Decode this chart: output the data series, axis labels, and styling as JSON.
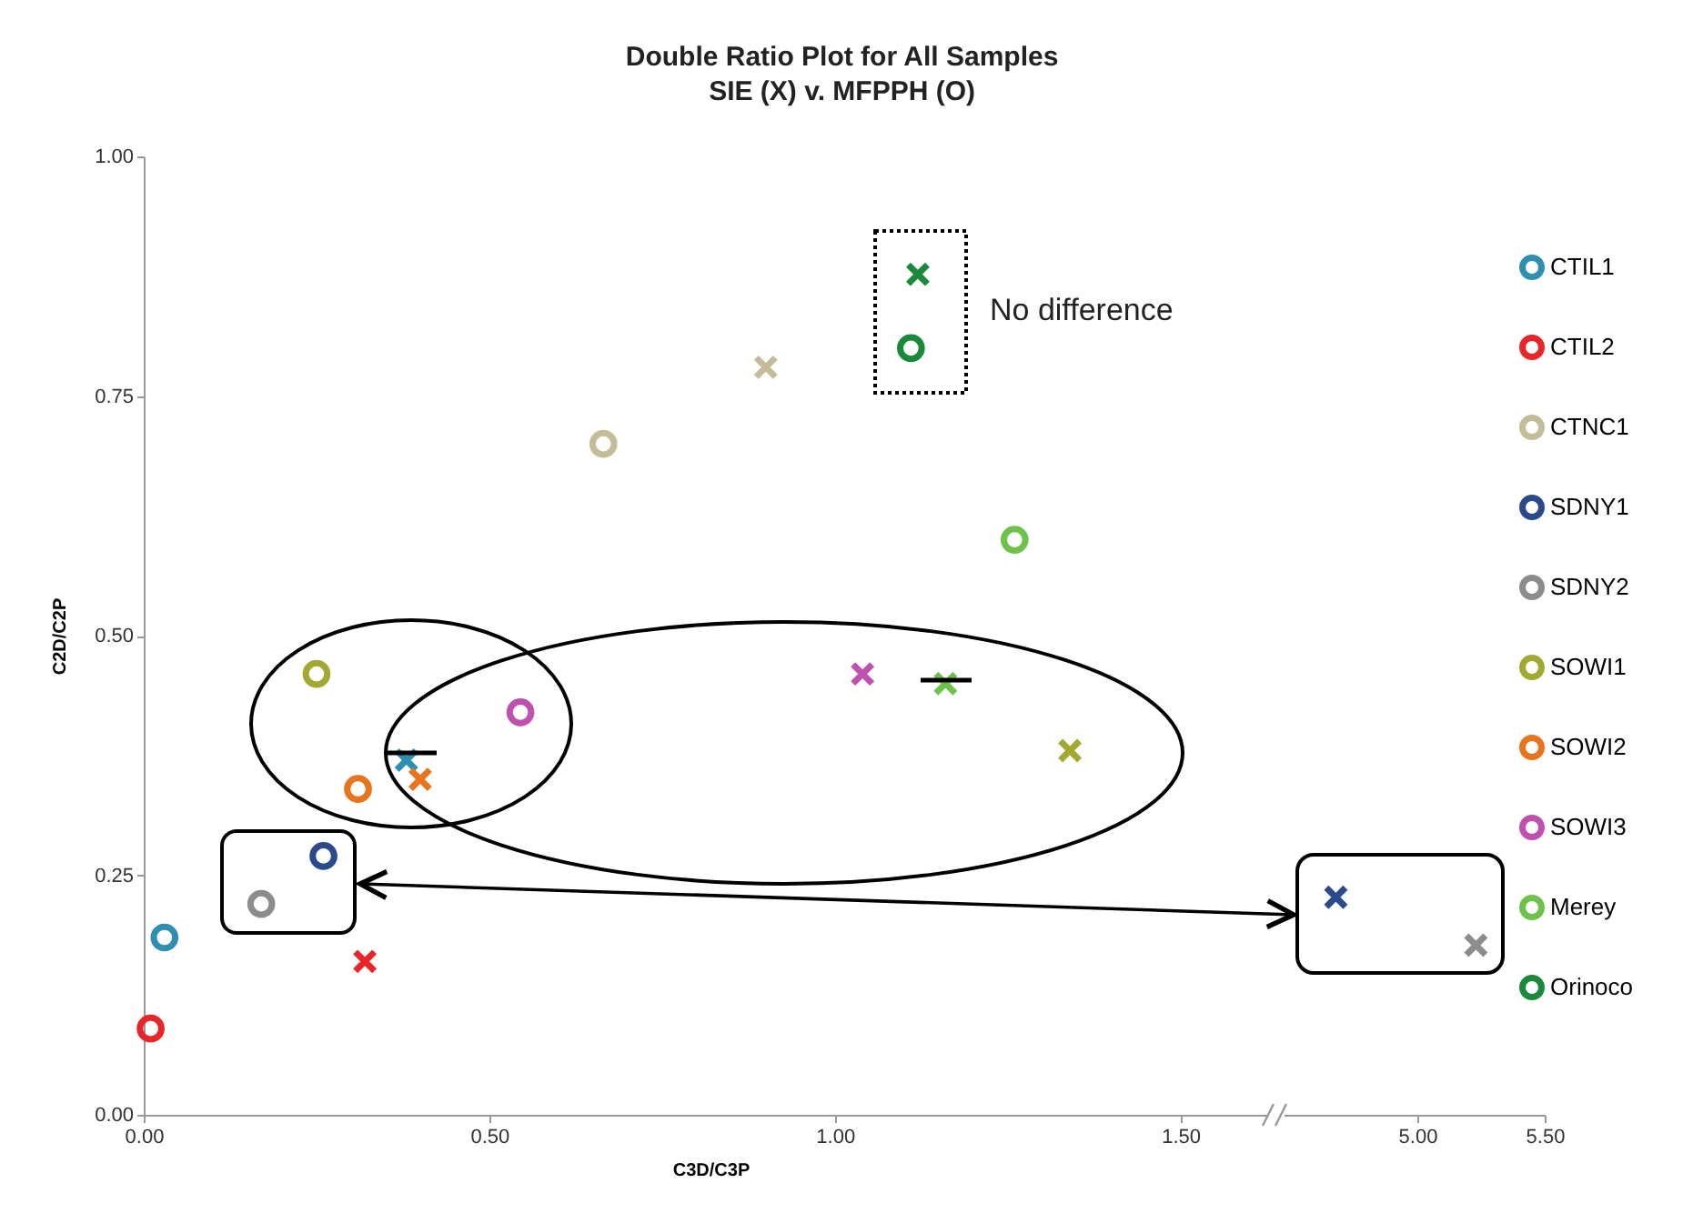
{
  "chart_data": [
    {
      "type": "scatter",
      "title": "Double Ratio Plot for All Samples",
      "subtitle": "SIE (X) v. MFPPH (O)",
      "xlabel": "C3D/C3P",
      "ylabel": "C2D/C2P",
      "xlim": [
        0,
        1.64
      ],
      "ylim": [
        0,
        1
      ],
      "xticks": [
        {
          "value": 0,
          "label": "0.00"
        },
        {
          "value": 0.5,
          "label": "0.50"
        },
        {
          "value": 1,
          "label": "1.00"
        },
        {
          "value": 1.5,
          "label": "1.50"
        }
      ],
      "yticks": [
        {
          "value": 0,
          "label": "0.00"
        },
        {
          "value": 0.25,
          "label": "0.25"
        },
        {
          "value": 0.5,
          "label": "0.50"
        },
        {
          "value": 0.75,
          "label": "0.75"
        },
        {
          "value": 1,
          "label": "1.00"
        }
      ],
      "legend": "right",
      "grid": false,
      "series": [
        {
          "name": "CTIL1",
          "color": "#2e8fb0",
          "marker": "circle",
          "x": [
            0.03
          ],
          "values": [
            0.185
          ]
        },
        {
          "name": "CTIL2",
          "color": "#e8262a",
          "marker": "circle",
          "x": [
            0.01
          ],
          "values": [
            0.09
          ]
        },
        {
          "name": "CTNC1",
          "color": "#c4bc98",
          "marker": "circle",
          "x": [
            0.665
          ],
          "values": [
            0.7
          ]
        },
        {
          "name": "SDNY1",
          "color": "#2a4a8c",
          "marker": "circle",
          "x": [
            0.26
          ],
          "values": [
            0.27
          ]
        },
        {
          "name": "SDNY2",
          "color": "#8c8c8c",
          "marker": "circle",
          "x": [
            0.17
          ],
          "values": [
            0.22
          ]
        },
        {
          "name": "SOWI1",
          "color": "#a3a830",
          "marker": "circle",
          "x": [
            0.25
          ],
          "values": [
            0.46
          ]
        },
        {
          "name": "SOWI2",
          "color": "#e8741e",
          "marker": "circle",
          "x": [
            0.31
          ],
          "values": [
            0.34
          ]
        },
        {
          "name": "SOWI3",
          "color": "#c050b0",
          "marker": "circle",
          "x": [
            0.545
          ],
          "values": [
            0.42
          ]
        },
        {
          "name": "Merey",
          "color": "#6cc24a",
          "marker": "circle",
          "x": [
            1.26
          ],
          "values": [
            0.6
          ]
        },
        {
          "name": "Orinoco",
          "color": "#1a8a3a",
          "marker": "circle",
          "x": [
            1.11
          ],
          "values": [
            0.8
          ]
        },
        {
          "color": "#2e8fb0",
          "marker": "cross",
          "x": [
            0.38
          ],
          "values": [
            0.37
          ]
        },
        {
          "color": "#e8262a",
          "marker": "cross",
          "x": [
            0.32
          ],
          "values": [
            0.16
          ]
        },
        {
          "color": "#c4bc98",
          "marker": "cross",
          "x": [
            0.9
          ],
          "values": [
            0.78
          ]
        },
        {
          "color": "#a3a830",
          "marker": "cross",
          "x": [
            1.34
          ],
          "values": [
            0.38
          ]
        },
        {
          "color": "#e8741e",
          "marker": "cross",
          "x": [
            0.4
          ],
          "values": [
            0.35
          ]
        },
        {
          "color": "#c050b0",
          "marker": "cross",
          "x": [
            1.04
          ],
          "values": [
            0.46
          ]
        },
        {
          "color": "#6cc24a",
          "marker": "cross",
          "x": [
            1.16
          ],
          "values": [
            0.45
          ]
        },
        {
          "color": "#1a8a3a",
          "marker": "cross",
          "x": [
            1.12
          ],
          "values": [
            0.877
          ]
        }
      ],
      "annotations": [
        "No difference"
      ]
    },
    {
      "type": "scatter",
      "xlim": [
        4.45,
        5.5
      ],
      "ylim": [
        0,
        1
      ],
      "tick_labels": "x",
      "xticks": [
        {
          "value": 5,
          "label": "5.00"
        },
        {
          "value": 5.5,
          "label": "5.50"
        }
      ],
      "series": [
        {
          "color": "#2a4a8c",
          "marker": "cross",
          "x": [
            4.68
          ],
          "values": [
            0.227
          ]
        },
        {
          "color": "#8c8c8c",
          "marker": "cross",
          "x": [
            5.23
          ],
          "values": [
            0.177
          ]
        }
      ]
    }
  ]
}
